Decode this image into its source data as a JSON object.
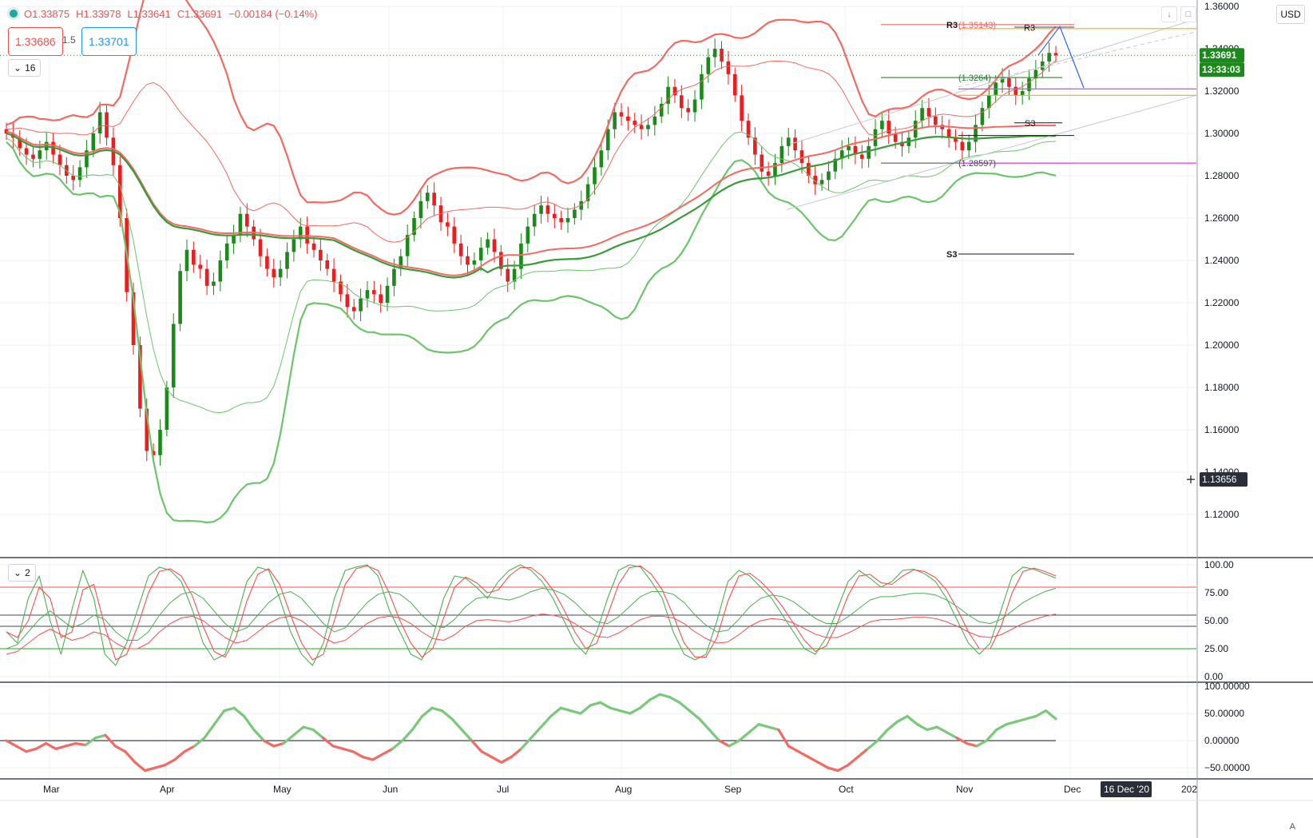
{
  "header": {
    "open": "O1.33875",
    "high": "H1.33978",
    "low": "L1.33641",
    "close": "C1.33691",
    "change": "−0.00184 (−0.14%)",
    "sell_price": "1.33686",
    "spread": "1.5",
    "buy_price": "1.33701",
    "currency": "USD",
    "main_indicator_count": "16",
    "stoch_indicator_count": "2",
    "auto_label": "A"
  },
  "colors": {
    "bull": "#1b8a1b",
    "bear": "#ee1c1c",
    "upper_band": "#f26a63",
    "lower_band": "#6cc46c",
    "grid": "#eef0f5"
  },
  "chart_data": [
    {
      "type": "candlestick",
      "pane": "price",
      "ylim": [
        1.1,
        1.36
      ],
      "y_ticks": [
        1.12,
        1.14,
        1.16,
        1.18,
        1.2,
        1.22,
        1.24,
        1.26,
        1.28,
        1.3,
        1.32,
        1.34,
        1.36
      ],
      "x_labels": [
        "Mar",
        "Apr",
        "May",
        "Jun",
        "Jul",
        "Aug",
        "Sep",
        "Oct",
        "Nov",
        "Dec",
        "202"
      ],
      "time_badge": "16 Dec '20",
      "last_price": "1.33691",
      "countdown": "13:33:03",
      "crosshair_price": "1.13656",
      "close_path": [
        1.3,
        1.298,
        1.293,
        1.29,
        1.288,
        1.292,
        1.296,
        1.29,
        1.285,
        1.28,
        1.278,
        1.284,
        1.292,
        1.3,
        1.31,
        1.298,
        1.285,
        1.26,
        1.225,
        1.2,
        1.17,
        1.15,
        1.148,
        1.16,
        1.18,
        1.21,
        1.235,
        1.245,
        1.238,
        1.236,
        1.228,
        1.23,
        1.24,
        1.248,
        1.252,
        1.262,
        1.256,
        1.25,
        1.242,
        1.236,
        1.232,
        1.236,
        1.244,
        1.25,
        1.256,
        1.248,
        1.245,
        1.24,
        1.236,
        1.23,
        1.224,
        1.218,
        1.216,
        1.222,
        1.226,
        1.224,
        1.22,
        1.228,
        1.236,
        1.242,
        1.252,
        1.26,
        1.268,
        1.272,
        1.266,
        1.258,
        1.256,
        1.248,
        1.242,
        1.238,
        1.24,
        1.246,
        1.25,
        1.244,
        1.236,
        1.23,
        1.236,
        1.248,
        1.256,
        1.262,
        1.266,
        1.262,
        1.26,
        1.258,
        1.26,
        1.264,
        1.268,
        1.276,
        1.284,
        1.292,
        1.302,
        1.31,
        1.308,
        1.306,
        1.304,
        1.302,
        1.304,
        1.308,
        1.314,
        1.322,
        1.318,
        1.312,
        1.31,
        1.316,
        1.328,
        1.336,
        1.34,
        1.334,
        1.328,
        1.318,
        1.306,
        1.298,
        1.29,
        1.282,
        1.28,
        1.286,
        1.294,
        1.298,
        1.292,
        1.286,
        1.28,
        1.276,
        1.278,
        1.282,
        1.288,
        1.292,
        1.294,
        1.29,
        1.288,
        1.294,
        1.302,
        1.306,
        1.3,
        1.296,
        1.294,
        1.298,
        1.306,
        1.312,
        1.308,
        1.304,
        1.302,
        1.298,
        1.296,
        1.292,
        1.296,
        1.304,
        1.312,
        1.318,
        1.324,
        1.326,
        1.322,
        1.318,
        1.32,
        1.326,
        1.33,
        1.334,
        1.338,
        1.3369
      ],
      "overlays": [
        "upper bands",
        "lower bands",
        "moving averages",
        "pivot levels",
        "trend lines"
      ],
      "annotations": [
        {
          "text": "R3",
          "price": 1.3514
        },
        {
          "text": "(1.35143)",
          "price": 1.3514
        },
        {
          "text": "R3",
          "price": 1.35
        },
        {
          "text": "(1.3264)",
          "price": 1.3264
        },
        {
          "text": "S3",
          "price": 1.305
        },
        {
          "text": "(1.28597)",
          "price": 1.286
        },
        {
          "text": "S3",
          "price": 1.243
        }
      ]
    },
    {
      "type": "line",
      "pane": "stochastic",
      "ylim": [
        0,
        100
      ],
      "y_ticks": [
        0,
        25,
        50,
        75,
        100
      ],
      "y_tick_labels": [
        "0.00",
        "25.00",
        "50.00",
        "75.00",
        "100.00"
      ],
      "reference_lines": [
        25,
        45,
        55,
        80
      ],
      "series": [
        {
          "values": [
            40,
            30,
            70,
            90,
            50,
            20,
            60,
            95,
            70,
            20,
            10,
            30,
            60,
            90,
            98,
            95,
            85,
            60,
            30,
            15,
            20,
            50,
            85,
            98,
            95,
            70,
            40,
            20,
            10,
            30,
            70,
            95,
            98,
            100,
            90,
            60,
            40,
            20,
            15,
            35,
            70,
            90,
            88,
            80,
            70,
            85,
            95,
            100,
            95,
            85,
            70,
            50,
            30,
            20,
            40,
            70,
            95,
            100,
            98,
            85,
            70,
            40,
            20,
            15,
            20,
            50,
            85,
            95,
            90,
            80,
            70,
            55,
            40,
            25,
            20,
            35,
            60,
            85,
            95,
            88,
            80,
            85,
            95,
            96,
            92,
            85,
            70,
            50,
            30,
            20,
            30,
            60,
            90,
            98,
            96,
            92,
            88
          ]
        },
        {
          "values": [
            20,
            25,
            40,
            55,
            65,
            55,
            45,
            50,
            60,
            55,
            40,
            30,
            30,
            40,
            60,
            75,
            85,
            88,
            80,
            65,
            50,
            40,
            45,
            60,
            75,
            85,
            88,
            80,
            65,
            50,
            40,
            45,
            60,
            75,
            85,
            88,
            85,
            75,
            60,
            48,
            45,
            55,
            70,
            80,
            82,
            80,
            78,
            82,
            88,
            92,
            90,
            85,
            75,
            62,
            52,
            50,
            58,
            70,
            82,
            88,
            88,
            85,
            75,
            60,
            48,
            40,
            42,
            55,
            70,
            80,
            84,
            82,
            76,
            66,
            56,
            50,
            50,
            58,
            68,
            78,
            82,
            82,
            84,
            86,
            86,
            84,
            78,
            70,
            60,
            52,
            50,
            55,
            65,
            75,
            82,
            88,
            92
          ]
        }
      ]
    },
    {
      "type": "line",
      "pane": "oscillator",
      "ylim": [
        -60,
        100
      ],
      "y_ticks": [
        -50,
        0,
        50,
        100
      ],
      "y_tick_labels": [
        "−50.00000",
        "0.00000",
        "50.00000",
        "100.00000"
      ],
      "series": [
        {
          "values": [
            0,
            -10,
            -20,
            -15,
            -5,
            -15,
            -10,
            -5,
            -8,
            5,
            10,
            -10,
            -20,
            -40,
            -55,
            -50,
            -45,
            -35,
            -20,
            -10,
            5,
            30,
            55,
            60,
            45,
            20,
            0,
            -10,
            -5,
            10,
            25,
            20,
            5,
            -10,
            -15,
            -20,
            -30,
            -35,
            -25,
            -15,
            0,
            20,
            45,
            60,
            55,
            40,
            20,
            0,
            -20,
            -30,
            -40,
            -30,
            -15,
            5,
            25,
            45,
            60,
            55,
            50,
            65,
            70,
            60,
            55,
            50,
            60,
            75,
            85,
            80,
            70,
            55,
            40,
            20,
            0,
            -10,
            0,
            15,
            30,
            25,
            20,
            -10,
            -20,
            -30,
            -40,
            -50,
            -55,
            -45,
            -30,
            -15,
            0,
            20,
            35,
            45,
            30,
            20,
            25,
            15,
            5,
            -5,
            -10,
            0,
            20,
            30,
            35,
            40,
            45,
            55,
            40
          ]
        }
      ]
    }
  ]
}
